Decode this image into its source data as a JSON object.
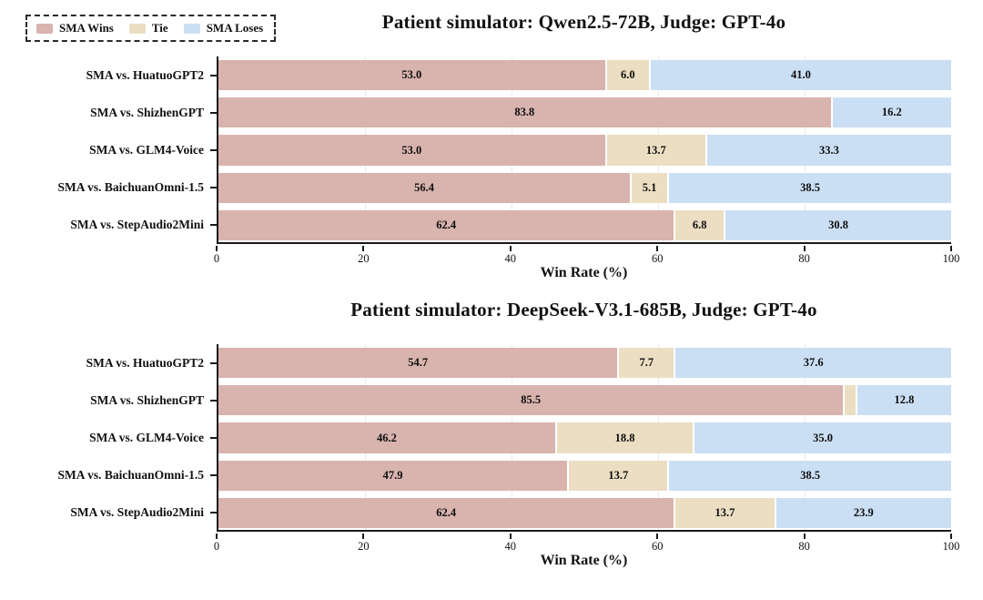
{
  "figure": {
    "background": "#ffffff",
    "axis_color": "#1a1a1a",
    "value_label_min_percent": 4
  },
  "legend": {
    "items": [
      {
        "label": "SMA Wins",
        "color": "#d9b3ae"
      },
      {
        "label": "Tie",
        "color": "#ebdec2"
      },
      {
        "label": "SMA Loses",
        "color": "#cbdff4"
      }
    ]
  },
  "chart_data": [
    {
      "type": "bar",
      "orientation": "horizontal",
      "stacked": true,
      "title": "Patient simulator: Qwen2.5-72B, Judge: GPT-4o",
      "xlabel": "Win Rate (%)",
      "xlim": [
        0,
        100
      ],
      "xticks": [
        0,
        20,
        40,
        60,
        80,
        100
      ],
      "gridlines": [
        20,
        40,
        60,
        80
      ],
      "legend_position": "top-left",
      "categories": [
        "SMA vs. HuatuoGPT2",
        "SMA vs. ShizhenGPT",
        "SMA vs. GLM4-Voice",
        "SMA vs. BaichuanOmni-1.5",
        "SMA vs. StepAudio2Mini"
      ],
      "series": [
        {
          "name": "SMA Wins",
          "color": "#d9b3ae",
          "values": [
            53.0,
            83.8,
            53.0,
            56.4,
            62.4
          ]
        },
        {
          "name": "Tie",
          "color": "#ebdec2",
          "values": [
            6.0,
            0.0,
            13.7,
            5.1,
            6.8
          ]
        },
        {
          "name": "SMA Loses",
          "color": "#cbdff4",
          "values": [
            41.0,
            16.2,
            33.3,
            38.5,
            30.8
          ]
        }
      ]
    },
    {
      "type": "bar",
      "orientation": "horizontal",
      "stacked": true,
      "title": "Patient simulator: DeepSeek-V3.1-685B, Judge: GPT-4o",
      "xlabel": "Win Rate (%)",
      "xlim": [
        0,
        100
      ],
      "xticks": [
        0,
        20,
        40,
        60,
        80,
        100
      ],
      "gridlines": [
        20,
        40,
        60,
        80
      ],
      "categories": [
        "SMA vs. HuatuoGPT2",
        "SMA vs. ShizhenGPT",
        "SMA vs. GLM4-Voice",
        "SMA vs. BaichuanOmni-1.5",
        "SMA vs. StepAudio2Mini"
      ],
      "series": [
        {
          "name": "SMA Wins",
          "color": "#d9b3ae",
          "values": [
            54.7,
            85.5,
            46.2,
            47.9,
            62.4
          ]
        },
        {
          "name": "Tie",
          "color": "#ebdec2",
          "values": [
            7.7,
            1.7,
            18.8,
            13.7,
            13.7
          ]
        },
        {
          "name": "SMA Loses",
          "color": "#cbdff4",
          "values": [
            37.6,
            12.8,
            35.0,
            38.5,
            23.9
          ]
        }
      ]
    }
  ]
}
